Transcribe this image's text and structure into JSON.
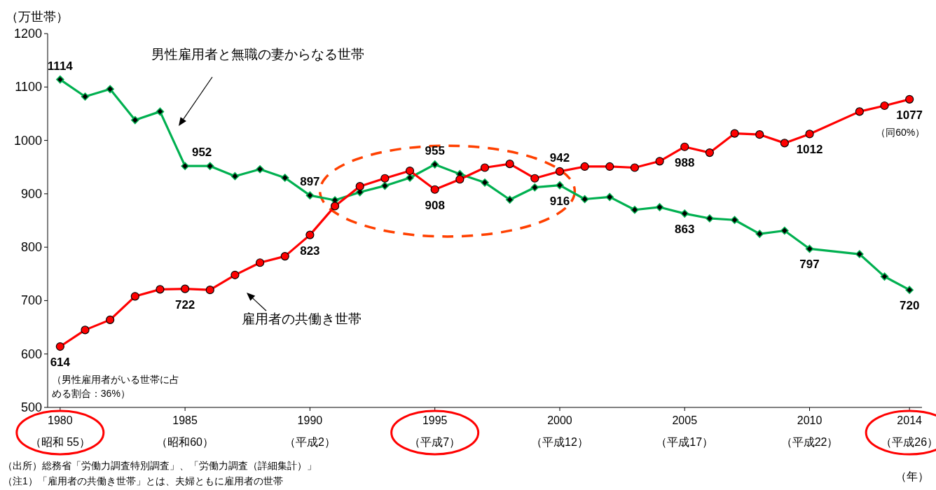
{
  "chart_data": {
    "type": "line",
    "ylabel": "（万世帯）",
    "xlabel": "（年）",
    "xlim": [
      1979.5,
      2014.5
    ],
    "ylim": [
      500,
      1200
    ],
    "yticks": [
      500,
      600,
      700,
      800,
      900,
      1000,
      1100,
      1200
    ],
    "xticks": [
      1980,
      1985,
      1990,
      1995,
      2000,
      2005,
      2010,
      2014
    ],
    "x": [
      1980,
      1981,
      1982,
      1983,
      1984,
      1985,
      1986,
      1987,
      1988,
      1989,
      1990,
      1991,
      1992,
      1993,
      1994,
      1995,
      1996,
      1997,
      1998,
      1999,
      2000,
      2001,
      2002,
      2003,
      2004,
      2005,
      2006,
      2007,
      2008,
      2009,
      2010,
      2012,
      2013,
      2014
    ],
    "grid": false,
    "line_style": "solid",
    "series": [
      {
        "name": "男性雇用者と無職の妻からなる世帯",
        "color": "#00b050",
        "marker": "diamond",
        "values": [
          1114,
          1082,
          1096,
          1038,
          1054,
          952,
          952,
          933,
          946,
          930,
          897,
          888,
          903,
          915,
          930,
          955,
          937,
          921,
          889,
          912,
          916,
          890,
          894,
          870,
          875,
          863,
          854,
          851,
          825,
          831,
          797,
          787,
          745,
          720
        ],
        "value_labels": [
          "1114",
          null,
          null,
          null,
          null,
          "952",
          null,
          null,
          null,
          null,
          "897",
          null,
          null,
          null,
          null,
          "955",
          null,
          null,
          null,
          null,
          "916",
          null,
          null,
          null,
          null,
          "863",
          null,
          null,
          null,
          null,
          "797",
          null,
          null,
          "720"
        ]
      },
      {
        "name": "雇用者の共働き世帯",
        "color": "#ff0000",
        "marker": "circle",
        "values": [
          614,
          645,
          664,
          708,
          721,
          722,
          720,
          748,
          771,
          783,
          823,
          877,
          914,
          929,
          943,
          908,
          927,
          949,
          956,
          929,
          942,
          951,
          951,
          949,
          961,
          988,
          977,
          1013,
          1011,
          995,
          1012,
          1054,
          1065,
          1077
        ],
        "value_labels": [
          "614",
          null,
          null,
          null,
          null,
          "722",
          null,
          null,
          null,
          null,
          "823",
          null,
          null,
          null,
          null,
          "908",
          null,
          null,
          null,
          null,
          "942",
          null,
          null,
          null,
          null,
          "988",
          null,
          null,
          null,
          null,
          "1012",
          null,
          null,
          "1077"
        ]
      }
    ],
    "annotations": [
      "（昭和 55）",
      "（昭和60）",
      "（平成2）",
      "（平成7）",
      "（平成12）",
      "（平成17）",
      "（平成22）",
      "（平成26）",
      {
        "text": "（男性雇用者がいる世帯に占める割合：36%）",
        "x": 1980,
        "y": 614
      },
      {
        "text": "（同60%）",
        "x": 2014,
        "y": 1077
      },
      "（出所）総務省「労働力調査特別調査」、「労働力調査（詳細集計）」",
      "（注1）「雇用者の共働き世帯」とは、夫婦ともに雇用者の世帯"
    ]
  }
}
